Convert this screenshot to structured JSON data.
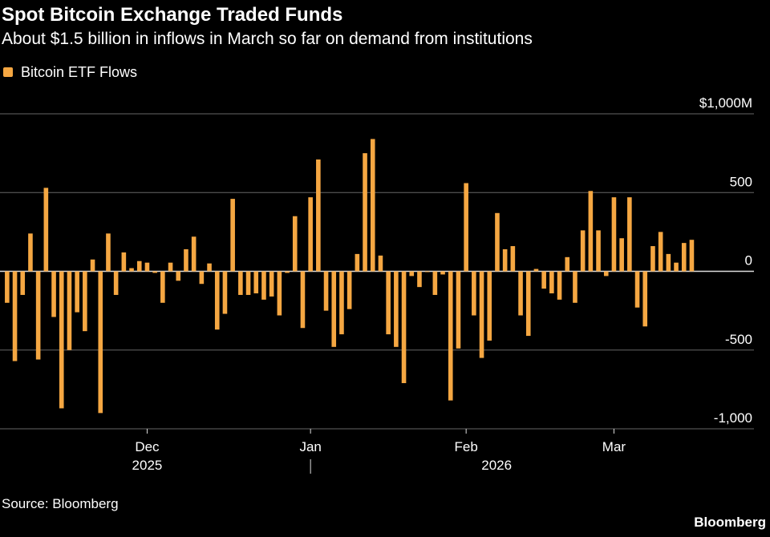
{
  "chart_data": {
    "type": "bar",
    "title": "Spot Bitcoin Exchange Traded Funds",
    "subtitle": "About $1.5 billion in inflows in March so far on demand from institutions",
    "source": "Source: Bloomberg",
    "brand": "Bloomberg",
    "categories": [
      null,
      null,
      null,
      null,
      null,
      null,
      null,
      null,
      null,
      null,
      null,
      null,
      null,
      null,
      null,
      null,
      null,
      null,
      "Dec",
      null,
      null,
      null,
      null,
      null,
      null,
      null,
      null,
      null,
      null,
      null,
      null,
      null,
      null,
      null,
      null,
      null,
      null,
      null,
      null,
      "Jan",
      null,
      null,
      null,
      null,
      null,
      null,
      null,
      null,
      null,
      null,
      null,
      null,
      null,
      null,
      null,
      null,
      null,
      null,
      null,
      "Feb",
      null,
      null,
      null,
      null,
      null,
      null,
      null,
      null,
      null,
      null,
      null,
      null,
      null,
      null,
      null,
      null,
      null,
      null,
      "Mar",
      null,
      null,
      null,
      null,
      null,
      null,
      null,
      null,
      null,
      null
    ],
    "year_labels": [
      "2025",
      "2026"
    ],
    "series": [
      {
        "name": "Bitcoin ETF Flows",
        "color": "#f5a742",
        "values": [
          -200,
          -570,
          -150,
          240,
          -560,
          530,
          -290,
          -870,
          -500,
          -260,
          -380,
          75,
          -900,
          240,
          -150,
          120,
          20,
          65,
          55,
          -10,
          -200,
          55,
          -60,
          140,
          220,
          -80,
          50,
          -370,
          -270,
          460,
          -150,
          -150,
          -140,
          -180,
          -160,
          -280,
          -10,
          350,
          -360,
          470,
          710,
          -250,
          -480,
          -400,
          -240,
          110,
          750,
          840,
          100,
          -400,
          -480,
          -710,
          -30,
          -100,
          -5,
          -150,
          -20,
          -820,
          -490,
          560,
          -280,
          -550,
          -440,
          370,
          140,
          160,
          -280,
          -410,
          15,
          -110,
          -140,
          -180,
          90,
          -200,
          260,
          510,
          260,
          -30,
          470,
          210,
          470,
          -230,
          -350,
          160,
          250,
          110,
          55,
          180,
          200
        ]
      }
    ],
    "ylim": [
      -1000,
      1000
    ],
    "yticks": [
      {
        "value": 1000,
        "label": "$1,000M"
      },
      500,
      0,
      -500,
      {
        "value": -1000,
        "label": "-1,000"
      }
    ],
    "grid": true
  }
}
